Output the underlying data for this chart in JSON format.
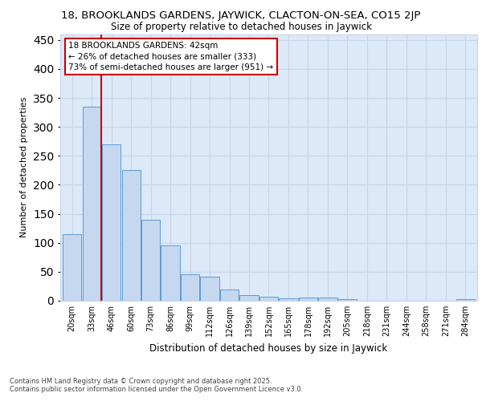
{
  "title_line1": "18, BROOKLANDS GARDENS, JAYWICK, CLACTON-ON-SEA, CO15 2JP",
  "title_line2": "Size of property relative to detached houses in Jaywick",
  "xlabel": "Distribution of detached houses by size in Jaywick",
  "ylabel": "Number of detached properties",
  "categories": [
    "20sqm",
    "33sqm",
    "46sqm",
    "60sqm",
    "73sqm",
    "86sqm",
    "99sqm",
    "112sqm",
    "126sqm",
    "139sqm",
    "152sqm",
    "165sqm",
    "178sqm",
    "192sqm",
    "205sqm",
    "218sqm",
    "231sqm",
    "244sqm",
    "258sqm",
    "271sqm",
    "284sqm"
  ],
  "values": [
    115,
    335,
    270,
    225,
    140,
    95,
    46,
    42,
    20,
    10,
    7,
    4,
    6,
    6,
    3,
    0,
    0,
    0,
    0,
    0,
    3
  ],
  "bar_color": "#c5d8f0",
  "bar_edge_color": "#5b9bd5",
  "grid_color": "#c8d4e8",
  "background_color": "#dce9f8",
  "vline_color": "#cc0000",
  "annotation_text": "18 BROOKLANDS GARDENS: 42sqm\n← 26% of detached houses are smaller (333)\n73% of semi-detached houses are larger (951) →",
  "annotation_box_color": "#ffffff",
  "annotation_box_edge_color": "#cc0000",
  "ylim": [
    0,
    460
  ],
  "yticks": [
    0,
    50,
    100,
    150,
    200,
    250,
    300,
    350,
    400,
    450
  ],
  "footer_line1": "Contains HM Land Registry data © Crown copyright and database right 2025.",
  "footer_line2": "Contains public sector information licensed under the Open Government Licence v3.0."
}
